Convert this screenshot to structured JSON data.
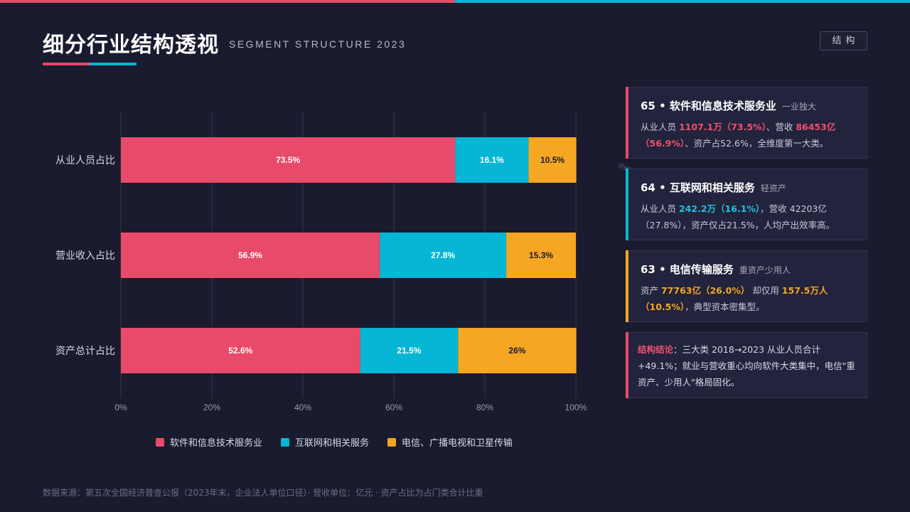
{
  "header": {
    "title": "细分行业结构透视",
    "subtitle": "SEGMENT STRUCTURE 2023",
    "tag": "结构"
  },
  "colors": {
    "software": "#e84a6a",
    "internet": "#06b6d4",
    "telecom": "#f5a623"
  },
  "chart_data": {
    "type": "bar",
    "orientation": "horizontal-stacked",
    "categories": [
      "从业人员占比",
      "营业收入占比",
      "资产总计占比"
    ],
    "series": [
      {
        "name": "软件和信息技术服务业",
        "values": [
          73.5,
          56.9,
          52.6
        ],
        "labels": [
          "73.5%",
          "56.9%",
          "52.6%"
        ],
        "color": "#e84a6a"
      },
      {
        "name": "互联网和相关服务",
        "values": [
          16.1,
          27.8,
          21.5
        ],
        "labels": [
          "16.1%",
          "27.8%",
          "21.5%"
        ],
        "color": "#06b6d4"
      },
      {
        "name": "电信、广播电视和卫星传输",
        "values": [
          10.5,
          15.3,
          26
        ],
        "labels": [
          "10.5%",
          "15.3%",
          "26%"
        ],
        "color": "#f5a623"
      }
    ],
    "xlim": [
      0,
      100
    ],
    "xticks": [
      "0%",
      "20%",
      "40%",
      "60%",
      "80%",
      "100%"
    ],
    "grid": true,
    "legend_position": "bottom"
  },
  "cards": [
    {
      "code": "65 • ",
      "name": "软件和信息技术服务业",
      "note": "一业独大",
      "accent": "#e84a6a",
      "body": [
        {
          "t": "从业人员 "
        },
        {
          "t": "1107.1万（73.5%）",
          "c": "hl-red"
        },
        {
          "t": "、营收 "
        },
        {
          "t": "86453亿（56.9%）",
          "c": "hl-red"
        },
        {
          "t": "、资产占52.6%，全维度第一大类。"
        }
      ]
    },
    {
      "code": "64 • ",
      "name": "互联网和相关服务",
      "note": "轻资产",
      "accent": "#06b6d4",
      "body": [
        {
          "t": "从业人员 "
        },
        {
          "t": "242.2万（16.1%）",
          "c": "hl-cyan"
        },
        {
          "t": "，营收 42203亿（27.8%），资产仅占21.5%，人均产出效率高。"
        }
      ]
    },
    {
      "code": "63 • ",
      "name": "电信传输服务",
      "note": "重资产少用人",
      "accent": "#f5a623",
      "body": [
        {
          "t": "资产 "
        },
        {
          "t": "77763亿（26.0%）",
          "c": "hl-orange"
        },
        {
          "t": " 却仅用 "
        },
        {
          "t": "157.5万人（10.5%）",
          "c": "hl-orange"
        },
        {
          "t": "，典型资本密集型。"
        }
      ]
    }
  ],
  "conclusion": {
    "label": "结构结论",
    "text": "：三大类 2018→2023 从业人员合计 +49.1%；就业与营收重心均向软件大类集中，电信\"重资产、少用人\"格局固化。"
  },
  "watermark": "Report @AIDataSh",
  "footer": "数据来源：第五次全国经济普查公报（2023年末，企业法人单位口径）· 营收单位：亿元 · 资产占比为占门类合计比重"
}
